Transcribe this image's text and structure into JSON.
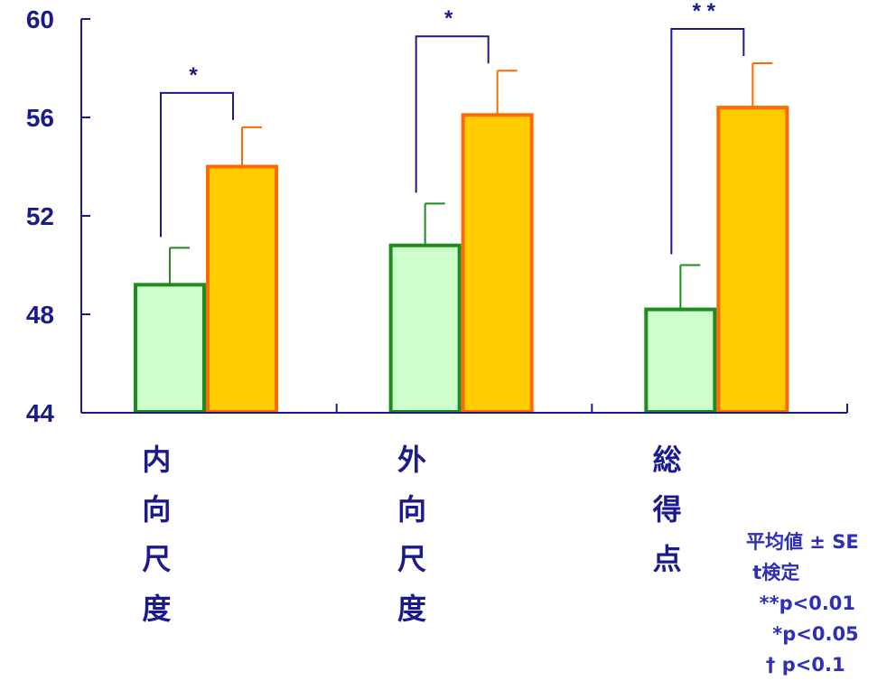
{
  "chart_data": {
    "type": "bar",
    "categories": [
      "内向尺度",
      "外向尺度",
      "総得点"
    ],
    "series": [
      {
        "values": [
          49.2,
          50.8,
          48.2
        ],
        "errors": [
          1.5,
          1.7,
          1.8
        ],
        "fill": "#ccffcc",
        "stroke": "#1e8c1e"
      },
      {
        "values": [
          54.0,
          56.1,
          56.4
        ],
        "errors": [
          1.6,
          1.8,
          1.8
        ],
        "fill": "#ffcc00",
        "stroke": "#ff6a00"
      }
    ],
    "ylim": [
      44,
      60
    ],
    "yticks": [
      "60",
      "56",
      "52",
      "48",
      "44"
    ],
    "significance": [
      "*",
      "*",
      "**"
    ],
    "legend_lines": [
      "平均値 ± SE",
      " t検定",
      "  **p<0.01",
      "    *p<0.05",
      "   † p<0.1"
    ],
    "axis_color": "#1a1a8c",
    "bracket_color": "#1a1a8c"
  }
}
